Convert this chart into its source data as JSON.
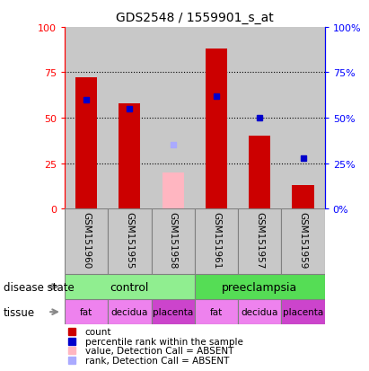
{
  "title": "GDS2548 / 1559901_s_at",
  "samples": [
    "GSM151960",
    "GSM151955",
    "GSM151958",
    "GSM151961",
    "GSM151957",
    "GSM151959"
  ],
  "count_values": [
    72,
    58,
    null,
    88,
    40,
    13
  ],
  "percentile_values": [
    60,
    55,
    null,
    62,
    null,
    null
  ],
  "absent_value_values": [
    null,
    null,
    20,
    null,
    null,
    null
  ],
  "absent_rank_values": [
    null,
    null,
    35,
    null,
    null,
    null
  ],
  "absent_percentile_values": [
    null,
    null,
    null,
    null,
    50,
    28
  ],
  "ylim": [
    0,
    100
  ],
  "yticks": [
    0,
    25,
    50,
    75,
    100
  ],
  "count_color": "#CC0000",
  "absent_count_color": "#FFB6C1",
  "percentile_color": "#0000CC",
  "absent_rank_color": "#AAAAFF",
  "bar_width": 0.5,
  "plot_bg_color": "#FFFFFF",
  "col_bg_color": "#C8C8C8",
  "ds_control_color": "#90EE90",
  "ds_preeclampsia_color": "#55DD55",
  "tissue_fat_color": "#EE82EE",
  "tissue_decidua_color": "#EE82EE",
  "tissue_placenta_color": "#CC44CC",
  "tissue_labels": [
    "fat",
    "decidua",
    "placenta",
    "fat",
    "decidua",
    "placenta"
  ],
  "disease_labels": [
    "control",
    "preeclampsia"
  ],
  "legend_items": [
    {
      "label": "count",
      "color": "#CC0000"
    },
    {
      "label": "percentile rank within the sample",
      "color": "#0000CC"
    },
    {
      "label": "value, Detection Call = ABSENT",
      "color": "#FFB6C1"
    },
    {
      "label": "rank, Detection Call = ABSENT",
      "color": "#AAAAFF"
    }
  ]
}
